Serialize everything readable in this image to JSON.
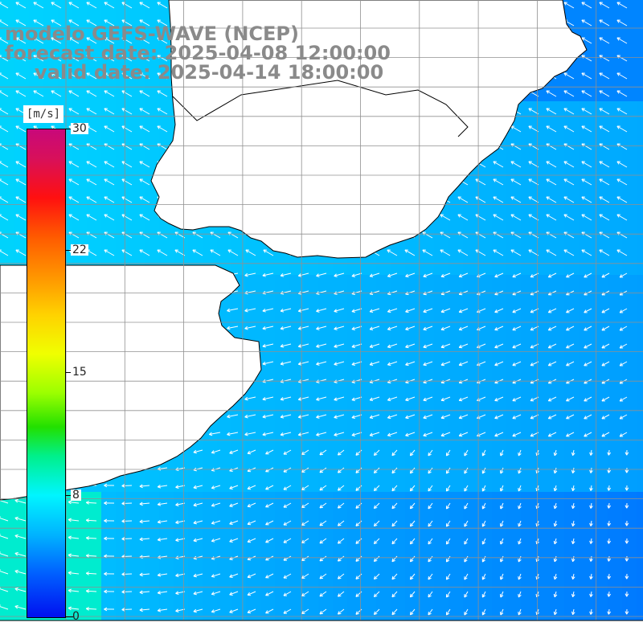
{
  "title": {
    "model": "modelo GEFS-WAVE (NCEP)",
    "forecast": "forecast date: 2025-04-08 12:00:00",
    "valid": "valid date: 2025-04-14 18:00:00"
  },
  "legend": {
    "unit": "[m/s]",
    "ticks": [
      {
        "label": "30",
        "value": 30
      },
      {
        "label": "22",
        "value": 22
      },
      {
        "label": "15",
        "value": 15
      },
      {
        "label": "8",
        "value": 8
      },
      {
        "label": "0",
        "value": 0
      }
    ]
  },
  "colors": {
    "land": "#ffffff",
    "coastline": "#000000",
    "grid": "#909090",
    "arrows": "#ffffff",
    "title_text": "#8a8a8a"
  },
  "map": {
    "field": "wind speed",
    "units": "m/s",
    "arrows": "wind direction (white vectors)",
    "grid_lines": true
  }
}
